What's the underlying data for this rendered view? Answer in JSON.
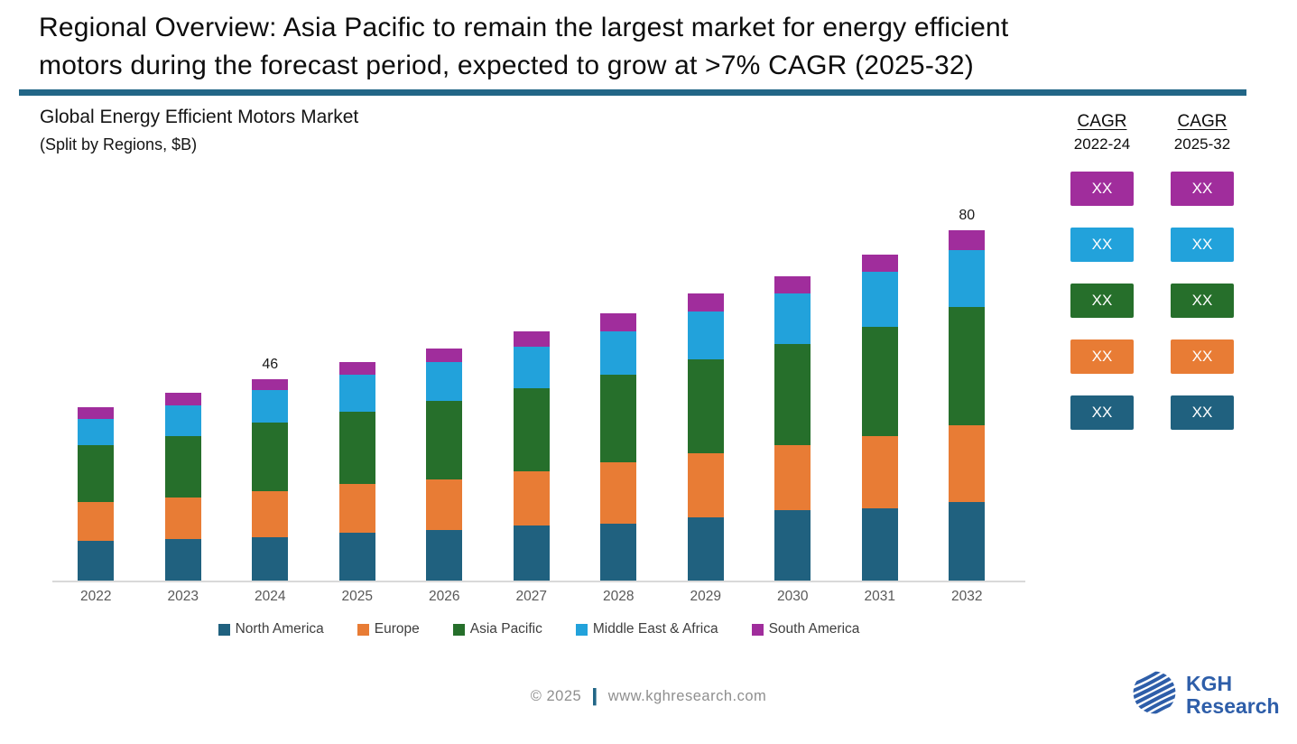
{
  "slide": {
    "title_line1": "Regional Overview: Asia Pacific to remain the largest market for energy efficient",
    "title_line2": "motors during the forecast period, expected to grow at >7% CAGR (2025-32)",
    "accent_rule_color": "#226687"
  },
  "chart": {
    "title": "Global Energy Efficient Motors Market",
    "subtitle": "(Split by Regions, $B)"
  },
  "chart_data": {
    "type": "bar",
    "stacked": true,
    "title": "Global Energy Efficient Motors Market (Split by Regions, $B)",
    "categories": [
      "2022",
      "2023",
      "2024",
      "2025",
      "2026",
      "2027",
      "2028",
      "2029",
      "2030",
      "2031",
      "2032"
    ],
    "series": [
      {
        "name": "North America",
        "color": "#20617F",
        "values": [
          9,
          9.5,
          10,
          11,
          11.5,
          12.5,
          13,
          14.5,
          16,
          16.5,
          18
        ]
      },
      {
        "name": "Europe",
        "color": "#E87C35",
        "values": [
          9,
          9.5,
          10.5,
          11,
          11.5,
          12.5,
          14,
          14.5,
          15,
          16.5,
          17.5
        ]
      },
      {
        "name": "Asia Pacific",
        "color": "#266F2B",
        "values": [
          13,
          14,
          15.5,
          16.5,
          18,
          19,
          20,
          21.5,
          23,
          25,
          27
        ]
      },
      {
        "name": "Middle East & Africa",
        "color": "#22A2DB",
        "values": [
          6,
          7,
          7.5,
          8.5,
          9,
          9.5,
          10,
          11,
          11.5,
          12.5,
          13
        ]
      },
      {
        "name": "South America",
        "color": "#A02D9C",
        "values": [
          2.5,
          3,
          2.5,
          3,
          3,
          3.5,
          4,
          4,
          4,
          4,
          4.5
        ]
      }
    ],
    "data_labels": {
      "2024": "46",
      "2032": "80"
    },
    "ylim": [
      0,
      85
    ],
    "grid": false,
    "legend_position": "bottom",
    "xlabel": "",
    "ylabel": ""
  },
  "cagr_panel": {
    "columns": [
      {
        "header": "CAGR",
        "period": "2022-24",
        "cells": [
          "XX",
          "XX",
          "XX",
          "XX",
          "XX"
        ]
      },
      {
        "header": "CAGR",
        "period": "2025-32",
        "cells": [
          "XX",
          "XX",
          "XX",
          "XX",
          "XX"
        ]
      }
    ],
    "cell_colors": [
      "#A02D9C",
      "#22A2DB",
      "#266F2B",
      "#E87C35",
      "#20617F"
    ]
  },
  "footer": {
    "copyright": "© 2025",
    "separator": "|",
    "website": "www.kghresearch.com"
  },
  "logo": {
    "line1": "KGH",
    "line2": "Research",
    "color": "#2E5EA9"
  }
}
